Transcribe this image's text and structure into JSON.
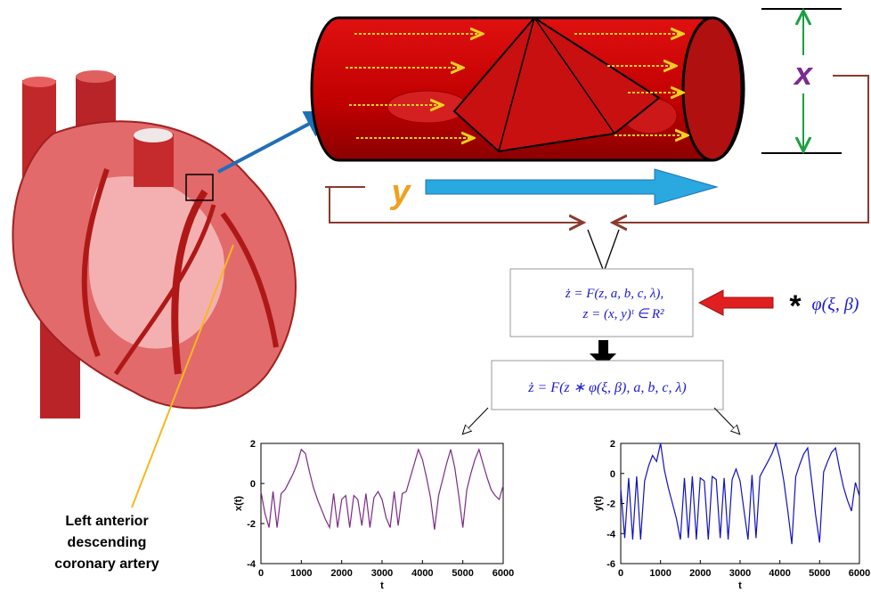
{
  "labels": {
    "x_label": "x",
    "y_label": "y",
    "artery_label": [
      "Left anterior",
      "descending",
      "coronary artery"
    ],
    "equation_1": [
      "ż = F(z, a, b, c, λ),",
      "z = (x, y)ᵗ ∈ R²"
    ],
    "equation_2": "ż = F(z ∗ φ(ξ, β), a, b, c, λ)",
    "star": "*",
    "noise": "φ(ξ, β)"
  },
  "chart_data": [
    {
      "type": "line",
      "x_label": "t",
      "y_label": "x(t)",
      "x": [
        0,
        100,
        200,
        300,
        400,
        500,
        600,
        700,
        800,
        900,
        1000,
        1100,
        1200,
        1300,
        1400,
        1500,
        1600,
        1700,
        1800,
        1900,
        2000,
        2100,
        2200,
        2300,
        2400,
        2500,
        2600,
        2700,
        2800,
        2900,
        3000,
        3100,
        3200,
        3300,
        3400,
        3500,
        3600,
        3700,
        3800,
        3900,
        4000,
        4100,
        4200,
        4300,
        4400,
        4500,
        4600,
        4700,
        4800,
        4900,
        5000,
        5100,
        5200,
        5300,
        5400,
        5500,
        5600,
        5700,
        5800,
        5900,
        6000
      ],
      "series": [
        {
          "name": "x(t)",
          "color": "#7b2a86",
          "values": [
            -0.4,
            -1.5,
            -2.2,
            -0.4,
            -2.2,
            -0.5,
            -0.3,
            0.1,
            0.5,
            1.0,
            1.7,
            1.5,
            0.6,
            -0.2,
            -0.8,
            -1.3,
            -1.8,
            -2.2,
            -0.5,
            -2.2,
            -0.8,
            -0.6,
            -2.2,
            -0.6,
            -0.8,
            -2.1,
            -0.5,
            -2.2,
            -0.7,
            -0.4,
            -0.8,
            -1.7,
            -2.2,
            -0.4,
            -2.1,
            -0.5,
            -0.4,
            0.3,
            1.0,
            1.7,
            1.2,
            0.3,
            -0.7,
            -2.3,
            -0.6,
            0.2,
            1.0,
            1.7,
            0.8,
            -0.6,
            -2.2,
            -0.3,
            0.5,
            1.2,
            1.7,
            1.0,
            0.3,
            -0.3,
            -0.6,
            -0.8,
            -0.1
          ]
        }
      ],
      "xlim": [
        0,
        6000
      ],
      "xticks": [
        0,
        1000,
        2000,
        3000,
        4000,
        5000,
        6000
      ],
      "ylim": [
        -4,
        2
      ],
      "yticks": [
        -4,
        -2,
        0,
        2
      ]
    },
    {
      "type": "line",
      "x_label": "t",
      "y_label": "y(t)",
      "x": [
        0,
        100,
        200,
        300,
        400,
        500,
        600,
        700,
        800,
        900,
        1000,
        1100,
        1200,
        1300,
        1400,
        1500,
        1600,
        1700,
        1800,
        1900,
        2000,
        2100,
        2200,
        2300,
        2400,
        2500,
        2600,
        2700,
        2800,
        2900,
        3000,
        3100,
        3200,
        3300,
        3400,
        3500,
        3600,
        3700,
        3800,
        3900,
        4000,
        4100,
        4200,
        4300,
        4400,
        4500,
        4600,
        4700,
        4800,
        4900,
        5000,
        5100,
        5200,
        5300,
        5400,
        5500,
        5600,
        5700,
        5800,
        5900,
        6000
      ],
      "series": [
        {
          "name": "y(t)",
          "color": "#1010c0",
          "values": [
            -1.0,
            -4.3,
            -0.3,
            -4.4,
            -0.2,
            -4.4,
            -0.5,
            0.5,
            1.2,
            0.8,
            2.0,
            0.2,
            -1.0,
            -2.0,
            -3.0,
            -4.4,
            -0.3,
            -4.3,
            -0.2,
            -4.4,
            -0.3,
            -0.5,
            -4.4,
            -0.2,
            -0.4,
            -4.3,
            -0.3,
            -4.4,
            -0.4,
            0.3,
            -0.5,
            -2.5,
            -4.4,
            -0.1,
            -4.3,
            -0.2,
            0.3,
            0.8,
            1.3,
            2.0,
            1.0,
            -0.5,
            -2.5,
            -4.7,
            -0.2,
            0.6,
            1.3,
            1.7,
            -0.5,
            -2.8,
            -4.6,
            0.1,
            0.8,
            1.4,
            1.7,
            0.3,
            -0.9,
            -1.8,
            -2.5,
            -0.6,
            -1.5
          ]
        }
      ],
      "xlim": [
        0,
        6000
      ],
      "xticks": [
        0,
        1000,
        2000,
        3000,
        4000,
        5000,
        6000
      ],
      "ylim": [
        -6,
        2
      ],
      "yticks": [
        -6,
        -4,
        -2,
        0,
        2
      ]
    }
  ]
}
